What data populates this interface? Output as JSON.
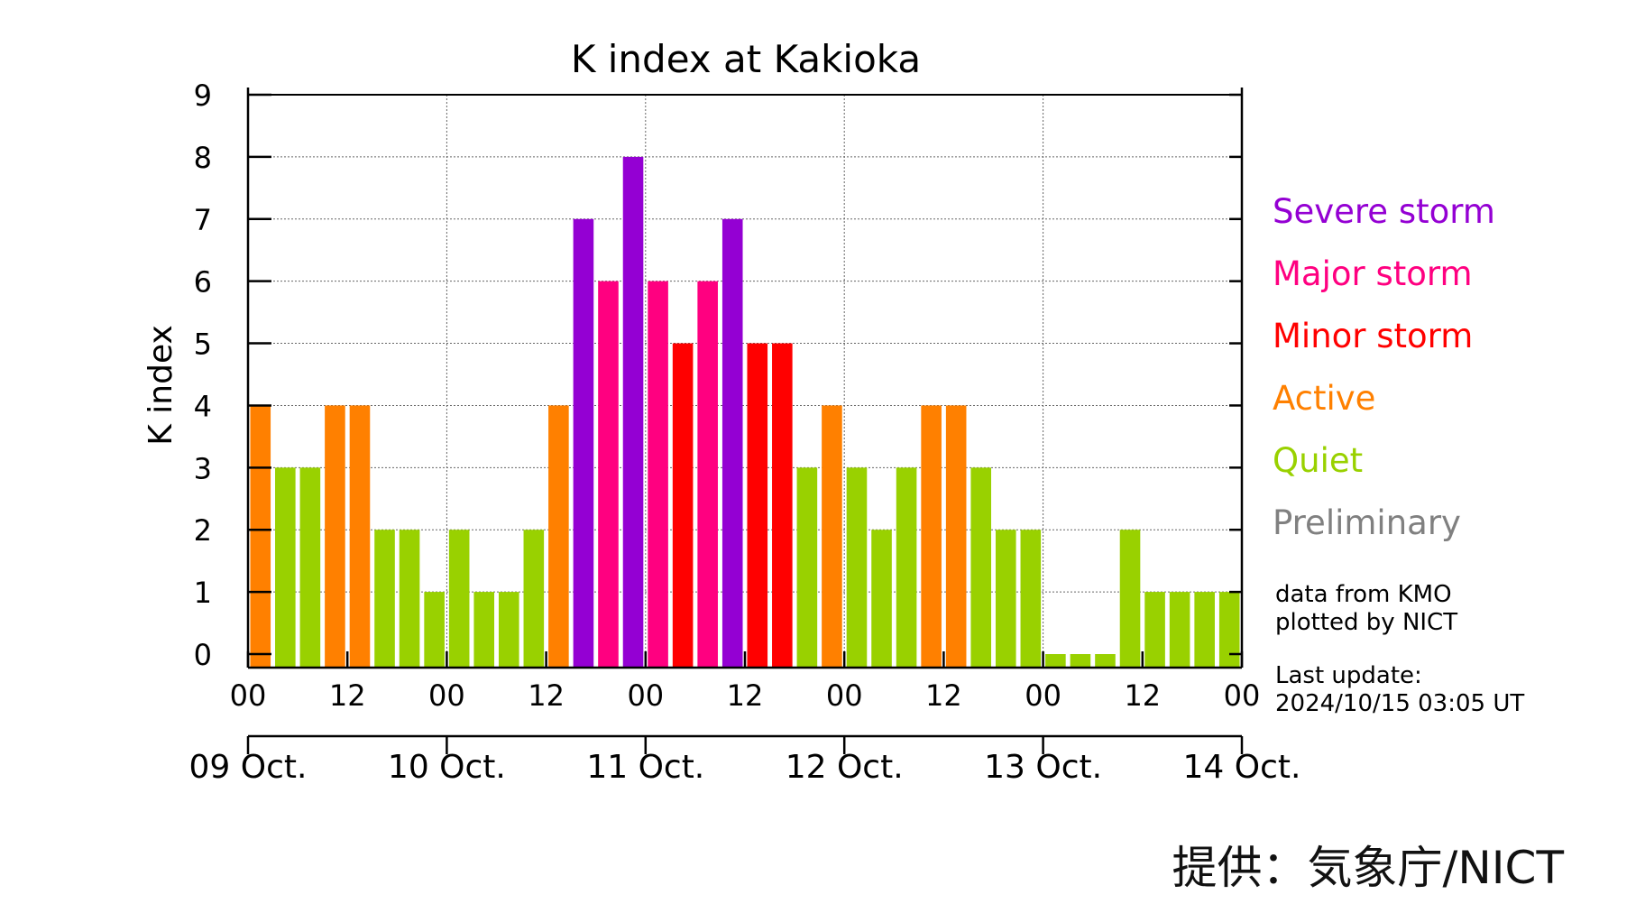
{
  "chart_data": {
    "type": "bar",
    "title": "K index at Kakioka",
    "xlabel": "",
    "ylabel": "K index",
    "ylim": [
      0,
      9
    ],
    "yticks": [
      "0",
      "1",
      "2",
      "3",
      "4",
      "5",
      "6",
      "7",
      "8",
      "9"
    ],
    "hour_ticks": [
      "00",
      "12",
      "00",
      "12",
      "00",
      "12",
      "00",
      "12",
      "00",
      "12",
      "00"
    ],
    "date_ticks": [
      "09 Oct.",
      "10 Oct.",
      "11 Oct.",
      "12 Oct.",
      "13 Oct.",
      "14 Oct."
    ],
    "interval_hours": 3,
    "values": [
      4,
      3,
      3,
      4,
      4,
      2,
      2,
      1,
      2,
      1,
      1,
      2,
      4,
      7,
      6,
      8,
      6,
      5,
      6,
      7,
      5,
      5,
      3,
      4,
      3,
      2,
      3,
      4,
      4,
      3,
      2,
      2,
      0,
      0,
      0,
      2,
      1,
      1,
      1,
      1
    ],
    "grid": true,
    "legend": [
      {
        "label": "Severe storm",
        "color": "#9400D3",
        "min": 7
      },
      {
        "label": "Major storm",
        "color": "#FF0080",
        "min": 6
      },
      {
        "label": "Minor storm",
        "color": "#FF0000",
        "min": 5
      },
      {
        "label": "Active",
        "color": "#FF8000",
        "min": 4
      },
      {
        "label": "Quiet",
        "color": "#99D100",
        "min": 0
      },
      {
        "label": "Preliminary",
        "color": "#808080",
        "min": null
      }
    ],
    "legend_position": "right"
  },
  "notes": {
    "source_line1": "data from KMO",
    "source_line2": "plotted by NICT",
    "update_label": "Last update:",
    "update_time": "2024/10/15 03:05 UT"
  },
  "credit": "提供：気象庁/NICT"
}
